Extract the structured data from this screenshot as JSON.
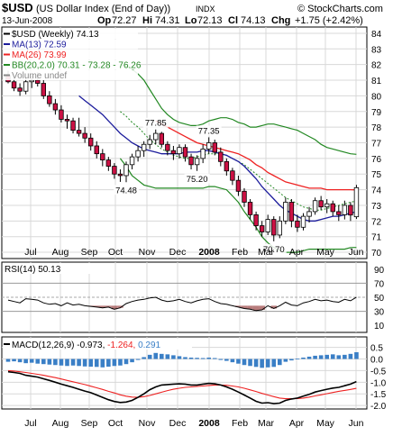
{
  "header": {
    "symbol": "$USD",
    "name": "(US Dollar Index (End of Day))",
    "exchange": "INDX",
    "copyright": "© StockCharts.com",
    "date": "13-Jun-2008",
    "open_label": "Op",
    "open": "72.27",
    "high_label": "Hi",
    "high": "74.31",
    "low_label": "Lo",
    "low": "72.13",
    "close_label": "Cl",
    "close": "74.13",
    "change_label": "Chg",
    "change": "+1.75 (+2.42%)"
  },
  "colors": {
    "up_candle": "#ffffff",
    "down_candle": "#cc1144",
    "ma13": "#1c1c9c",
    "ma26": "#ee2222",
    "bb": "#228822",
    "rsi_line": "#000000",
    "rsi_fill": "#a05050",
    "macd_line": "#000000",
    "macd_signal": "#ee2222",
    "macd_hist": "#3a7fc6",
    "grid": "#d8d8d8",
    "panel_border": "#000000"
  },
  "legend": [
    {
      "label": "$USD (Weekly)",
      "value": "74.13",
      "color": "#000000"
    },
    {
      "label": "MA(13)",
      "value": "72.59",
      "color": "#1c1c9c"
    },
    {
      "label": "MA(26)",
      "value": "73.99",
      "color": "#ee2222"
    },
    {
      "label": "BB(20,2.0)",
      "value": "70.31 - 73.28 - 76.26",
      "color": "#228822"
    },
    {
      "label": "Volume undef",
      "value": "",
      "color": "#888888"
    }
  ],
  "rsi_label": {
    "label": "RSI(14)",
    "value": "50.13"
  },
  "macd_label": {
    "label": "MACD(12,26,9)",
    "macd": "-0.973",
    "signal": "-1.264",
    "hist": "0.291"
  },
  "chart_data": {
    "type": "candlestick",
    "x_labels": [
      "Jul",
      "Aug",
      "Sep",
      "Oct",
      "Nov",
      "Dec",
      "2008",
      "Feb",
      "Mar",
      "Apr",
      "May",
      "Jun"
    ],
    "price_ylim": [
      69.6,
      84.4
    ],
    "price_ticks": [
      70,
      71,
      72,
      73,
      74,
      75,
      76,
      77,
      78,
      79,
      80,
      81,
      82,
      83,
      84
    ],
    "annotations": [
      {
        "week": 25,
        "value": 77.85,
        "label": "77.85",
        "side": "above"
      },
      {
        "week": 34,
        "value": 77.35,
        "label": "77.35",
        "side": "above"
      },
      {
        "week": 20,
        "value": 74.48,
        "label": "74.48",
        "side": "below"
      },
      {
        "week": 32,
        "value": 75.2,
        "label": "75.20",
        "side": "below"
      },
      {
        "week": 45,
        "value": 70.7,
        "label": "70.70",
        "side": "below"
      }
    ],
    "candles": [
      {
        "o": 81.3,
        "h": 81.6,
        "l": 80.8,
        "c": 80.9
      },
      {
        "o": 80.9,
        "h": 81.1,
        "l": 80.3,
        "c": 80.5
      },
      {
        "o": 80.5,
        "h": 80.8,
        "l": 80.0,
        "c": 80.3
      },
      {
        "o": 80.3,
        "h": 81.2,
        "l": 80.1,
        "c": 80.9
      },
      {
        "o": 80.9,
        "h": 81.3,
        "l": 80.5,
        "c": 81.0
      },
      {
        "o": 81.0,
        "h": 81.5,
        "l": 80.6,
        "c": 80.8
      },
      {
        "o": 80.8,
        "h": 81.0,
        "l": 79.8,
        "c": 80.0
      },
      {
        "o": 80.0,
        "h": 80.3,
        "l": 79.3,
        "c": 79.5
      },
      {
        "o": 79.5,
        "h": 79.8,
        "l": 78.8,
        "c": 79.1
      },
      {
        "o": 79.1,
        "h": 79.4,
        "l": 78.3,
        "c": 78.5
      },
      {
        "o": 78.5,
        "h": 78.8,
        "l": 77.9,
        "c": 78.4
      },
      {
        "o": 78.4,
        "h": 78.6,
        "l": 77.6,
        "c": 77.8
      },
      {
        "o": 77.8,
        "h": 78.6,
        "l": 77.4,
        "c": 77.6
      },
      {
        "o": 77.6,
        "h": 78.0,
        "l": 77.0,
        "c": 77.3
      },
      {
        "o": 77.3,
        "h": 77.6,
        "l": 76.5,
        "c": 76.8
      },
      {
        "o": 76.8,
        "h": 77.1,
        "l": 76.0,
        "c": 76.3
      },
      {
        "o": 76.3,
        "h": 76.6,
        "l": 75.5,
        "c": 75.9
      },
      {
        "o": 75.9,
        "h": 76.1,
        "l": 75.2,
        "c": 75.5
      },
      {
        "o": 75.5,
        "h": 75.7,
        "l": 74.7,
        "c": 75.0
      },
      {
        "o": 75.0,
        "h": 75.3,
        "l": 74.5,
        "c": 74.9
      },
      {
        "o": 74.9,
        "h": 75.8,
        "l": 74.48,
        "c": 75.6
      },
      {
        "o": 75.6,
        "h": 76.3,
        "l": 75.3,
        "c": 76.1
      },
      {
        "o": 76.1,
        "h": 76.8,
        "l": 75.8,
        "c": 76.5
      },
      {
        "o": 76.5,
        "h": 77.1,
        "l": 76.1,
        "c": 76.9
      },
      {
        "o": 76.9,
        "h": 77.5,
        "l": 76.6,
        "c": 77.2
      },
      {
        "o": 77.2,
        "h": 77.85,
        "l": 76.9,
        "c": 77.6
      },
      {
        "o": 77.6,
        "h": 77.7,
        "l": 76.7,
        "c": 76.9
      },
      {
        "o": 76.9,
        "h": 77.1,
        "l": 76.2,
        "c": 76.5
      },
      {
        "o": 76.5,
        "h": 76.8,
        "l": 75.9,
        "c": 76.3
      },
      {
        "o": 76.3,
        "h": 76.9,
        "l": 76.0,
        "c": 76.7
      },
      {
        "o": 76.7,
        "h": 76.9,
        "l": 75.8,
        "c": 76.1
      },
      {
        "o": 76.1,
        "h": 76.3,
        "l": 75.3,
        "c": 75.6
      },
      {
        "o": 75.6,
        "h": 76.2,
        "l": 75.2,
        "c": 76.0
      },
      {
        "o": 76.0,
        "h": 76.9,
        "l": 75.7,
        "c": 76.6
      },
      {
        "o": 76.6,
        "h": 77.35,
        "l": 76.3,
        "c": 77.0
      },
      {
        "o": 77.0,
        "h": 77.2,
        "l": 76.2,
        "c": 76.4
      },
      {
        "o": 76.4,
        "h": 76.7,
        "l": 75.5,
        "c": 75.8
      },
      {
        "o": 75.8,
        "h": 76.0,
        "l": 74.9,
        "c": 75.2
      },
      {
        "o": 75.2,
        "h": 75.4,
        "l": 74.3,
        "c": 74.6
      },
      {
        "o": 74.6,
        "h": 74.9,
        "l": 73.6,
        "c": 73.9
      },
      {
        "o": 73.9,
        "h": 74.1,
        "l": 72.9,
        "c": 73.2
      },
      {
        "o": 73.2,
        "h": 73.4,
        "l": 72.1,
        "c": 72.4
      },
      {
        "o": 72.4,
        "h": 72.6,
        "l": 71.4,
        "c": 71.7
      },
      {
        "o": 71.7,
        "h": 72.0,
        "l": 71.0,
        "c": 71.3
      },
      {
        "o": 71.3,
        "h": 72.4,
        "l": 71.1,
        "c": 72.1
      },
      {
        "o": 72.1,
        "h": 72.3,
        "l": 70.7,
        "c": 71.1
      },
      {
        "o": 71.1,
        "h": 72.3,
        "l": 70.9,
        "c": 72.0
      },
      {
        "o": 72.0,
        "h": 73.5,
        "l": 71.8,
        "c": 73.2
      },
      {
        "o": 73.2,
        "h": 73.4,
        "l": 71.6,
        "c": 72.0
      },
      {
        "o": 72.0,
        "h": 72.4,
        "l": 71.3,
        "c": 71.6
      },
      {
        "o": 71.6,
        "h": 72.5,
        "l": 71.4,
        "c": 72.3
      },
      {
        "o": 72.3,
        "h": 72.9,
        "l": 71.9,
        "c": 72.6
      },
      {
        "o": 72.6,
        "h": 73.5,
        "l": 72.4,
        "c": 73.3
      },
      {
        "o": 73.3,
        "h": 73.6,
        "l": 72.7,
        "c": 72.9
      },
      {
        "o": 72.9,
        "h": 73.4,
        "l": 72.5,
        "c": 73.1
      },
      {
        "o": 73.1,
        "h": 73.3,
        "l": 72.3,
        "c": 72.6
      },
      {
        "o": 72.6,
        "h": 73.0,
        "l": 72.0,
        "c": 72.4
      },
      {
        "o": 72.4,
        "h": 73.3,
        "l": 72.1,
        "c": 73.0
      },
      {
        "o": 73.0,
        "h": 73.2,
        "l": 72.0,
        "c": 72.38
      },
      {
        "o": 72.27,
        "h": 74.31,
        "l": 72.13,
        "c": 74.13
      }
    ],
    "ma13": [
      null,
      null,
      null,
      null,
      null,
      null,
      null,
      null,
      null,
      null,
      null,
      null,
      80.0,
      79.7,
      79.4,
      79.1,
      78.8,
      78.4,
      78.0,
      77.6,
      77.3,
      77.0,
      76.8,
      76.6,
      76.5,
      76.4,
      76.3,
      76.3,
      76.3,
      76.3,
      76.4,
      76.4,
      76.4,
      76.5,
      76.5,
      76.4,
      76.3,
      76.2,
      76.0,
      75.8,
      75.5,
      75.1,
      74.7,
      74.2,
      73.8,
      73.4,
      73.0,
      72.7,
      72.5,
      72.3,
      72.1,
      72.0,
      72.0,
      72.1,
      72.2,
      72.3,
      72.3,
      72.4,
      72.5,
      72.59
    ],
    "ma26": [
      null,
      null,
      null,
      null,
      null,
      null,
      null,
      null,
      null,
      null,
      null,
      null,
      null,
      null,
      null,
      null,
      null,
      null,
      null,
      null,
      null,
      null,
      null,
      null,
      null,
      78.4,
      78.2,
      78.0,
      77.8,
      77.6,
      77.4,
      77.2,
      77.0,
      76.9,
      76.8,
      76.7,
      76.6,
      76.5,
      76.4,
      76.3,
      76.1,
      75.9,
      75.6,
      75.4,
      75.1,
      74.9,
      74.7,
      74.5,
      74.4,
      74.3,
      74.2,
      74.1,
      74.1,
      74.1,
      74.0,
      74.0,
      74.0,
      74.0,
      74.0,
      73.99
    ],
    "bb_mid": [
      null,
      null,
      null,
      null,
      null,
      null,
      null,
      null,
      null,
      null,
      null,
      null,
      null,
      null,
      null,
      null,
      null,
      null,
      null,
      79.0,
      78.7,
      78.3,
      78.0,
      77.6,
      77.2,
      76.9,
      76.6,
      76.4,
      76.2,
      76.1,
      76.0,
      76.0,
      76.1,
      76.2,
      76.3,
      76.3,
      76.3,
      76.2,
      76.0,
      75.8,
      75.6,
      75.3,
      75.0,
      74.7,
      74.4,
      74.1,
      73.8,
      73.5,
      73.3,
      73.1,
      72.9,
      72.8,
      72.7,
      72.7,
      72.8,
      72.9,
      73.0,
      73.1,
      73.2,
      73.28
    ],
    "bb_upper": [
      null,
      null,
      null,
      null,
      null,
      null,
      null,
      null,
      null,
      null,
      null,
      null,
      null,
      null,
      null,
      null,
      null,
      null,
      null,
      82.0,
      81.9,
      81.7,
      81.4,
      81.0,
      80.4,
      79.8,
      79.2,
      78.8,
      78.5,
      78.3,
      78.2,
      78.1,
      78.1,
      78.2,
      78.4,
      78.5,
      78.6,
      78.6,
      78.5,
      78.3,
      78.2,
      78.0,
      78.0,
      78.1,
      78.2,
      78.2,
      78.1,
      78.0,
      77.9,
      77.8,
      77.6,
      77.4,
      77.2,
      76.9,
      76.7,
      76.6,
      76.5,
      76.4,
      76.3,
      76.26
    ],
    "bb_lower": [
      null,
      null,
      null,
      null,
      null,
      null,
      null,
      null,
      null,
      null,
      null,
      null,
      null,
      null,
      null,
      null,
      null,
      null,
      null,
      76.0,
      75.5,
      74.9,
      74.6,
      74.3,
      74.2,
      74.1,
      74.1,
      74.1,
      74.1,
      74.1,
      74.1,
      74.1,
      74.1,
      74.1,
      74.2,
      74.2,
      74.1,
      74.0,
      73.6,
      73.2,
      72.6,
      72.1,
      71.6,
      71.0,
      70.6,
      70.3,
      70.1,
      70.0,
      70.0,
      70.0,
      70.1,
      70.2,
      70.2,
      70.2,
      70.2,
      70.2,
      70.2,
      70.2,
      70.3,
      70.31
    ],
    "rsi": {
      "ylim": [
        0,
        100
      ],
      "ticks": [
        10,
        30,
        50,
        70,
        90
      ],
      "values": [
        46,
        44,
        42,
        48,
        47,
        46,
        42,
        40,
        41,
        38,
        42,
        39,
        40,
        38,
        37,
        36,
        35,
        36,
        33,
        35,
        41,
        44,
        46,
        47,
        49,
        50,
        46,
        44,
        45,
        47,
        44,
        42,
        45,
        47,
        48,
        44,
        41,
        40,
        38,
        36,
        34,
        33,
        31,
        32,
        38,
        34,
        38,
        43,
        39,
        38,
        42,
        44,
        47,
        45,
        46,
        44,
        43,
        47,
        45,
        50.13
      ]
    },
    "macd": {
      "ylim": [
        -2.15,
        0.95
      ],
      "ticks": [
        0.5,
        0.0,
        -0.5,
        -1.0,
        -1.5,
        -2.0
      ],
      "macd": [
        -0.55,
        -0.58,
        -0.62,
        -0.7,
        -0.74,
        -0.78,
        -0.85,
        -0.92,
        -1.0,
        -1.08,
        -1.15,
        -1.22,
        -1.3,
        -1.38,
        -1.45,
        -1.55,
        -1.65,
        -1.75,
        -1.83,
        -1.87,
        -1.85,
        -1.78,
        -1.65,
        -1.5,
        -1.32,
        -1.2,
        -1.12,
        -1.1,
        -1.08,
        -1.07,
        -1.08,
        -1.12,
        -1.12,
        -1.08,
        -1.05,
        -1.07,
        -1.12,
        -1.2,
        -1.3,
        -1.42,
        -1.55,
        -1.68,
        -1.82,
        -1.9,
        -1.88,
        -1.92,
        -1.9,
        -1.78,
        -1.72,
        -1.68,
        -1.6,
        -1.52,
        -1.42,
        -1.36,
        -1.3,
        -1.25,
        -1.22,
        -1.15,
        -1.08,
        -0.973
      ],
      "signal": [
        -0.5,
        -0.52,
        -0.55,
        -0.58,
        -0.62,
        -0.66,
        -0.7,
        -0.75,
        -0.8,
        -0.86,
        -0.92,
        -0.98,
        -1.04,
        -1.1,
        -1.17,
        -1.24,
        -1.31,
        -1.39,
        -1.46,
        -1.54,
        -1.6,
        -1.64,
        -1.65,
        -1.62,
        -1.57,
        -1.5,
        -1.43,
        -1.36,
        -1.3,
        -1.26,
        -1.22,
        -1.2,
        -1.18,
        -1.16,
        -1.14,
        -1.12,
        -1.12,
        -1.13,
        -1.16,
        -1.2,
        -1.26,
        -1.33,
        -1.4,
        -1.48,
        -1.55,
        -1.62,
        -1.68,
        -1.71,
        -1.71,
        -1.7,
        -1.68,
        -1.64,
        -1.59,
        -1.54,
        -1.49,
        -1.44,
        -1.39,
        -1.35,
        -1.31,
        -1.264
      ],
      "hist": [
        -0.12,
        -0.1,
        -0.14,
        -0.18,
        -0.16,
        -0.2,
        -0.22,
        -0.24,
        -0.26,
        -0.28,
        -0.3,
        -0.28,
        -0.3,
        -0.32,
        -0.33,
        -0.34,
        -0.36,
        -0.33,
        -0.3,
        -0.28,
        -0.22,
        -0.14,
        -0.04,
        0.08,
        0.18,
        0.26,
        0.22,
        0.2,
        0.16,
        0.12,
        0.08,
        0.06,
        0.05,
        0.04,
        0.06,
        0.04,
        -0.04,
        -0.08,
        -0.14,
        -0.2,
        -0.26,
        -0.3,
        -0.34,
        -0.38,
        -0.36,
        -0.34,
        -0.26,
        -0.12,
        -0.06,
        0.02,
        0.06,
        0.1,
        0.14,
        0.16,
        0.18,
        0.2,
        0.16,
        0.18,
        0.22,
        0.291
      ]
    }
  }
}
